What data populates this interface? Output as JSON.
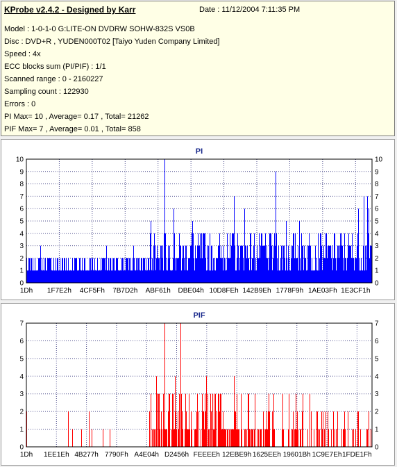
{
  "info": {
    "title": "KProbe v2.4.2 - Designed by Karr",
    "date": "Date :  11/12/2004 7:11:35 PM",
    "rows": [
      "Model : 1-0-1-0 G:LITE-ON DVDRW SOHW-832S  VS0B",
      "Disc : DVD+R , YUDEN000T02 [Taiyo Yuden Company Limited]",
      "Speed : 4x",
      "ECC blocks sum (PI/PIF) : 1/1",
      "Scanned range : 0 - 2160227",
      "Sampling count : 122930",
      "Errors : 0",
      "PI Max= 10 , Average= 0.17 , Total= 21262",
      "PIF Max= 7 , Average= 0.01 , Total= 858"
    ]
  },
  "chart_data": [
    {
      "type": "bar",
      "title": "PI",
      "color": "#0000ff",
      "ylim": [
        0,
        10
      ],
      "yticks": [
        "0",
        "1",
        "2",
        "3",
        "4",
        "5",
        "6",
        "7",
        "8",
        "9",
        "10"
      ],
      "xticks": [
        "1Dh",
        "1F7E2h",
        "4CF5Fh",
        "7B7D2h",
        "ABF61h",
        "DBE04h",
        "10D8FEh",
        "142B9Eh",
        "1778F9h",
        "1AE03Fh",
        "1E3CF1h"
      ],
      "grid": true,
      "segments": [
        {
          "x": [
            0.0,
            0.355
          ],
          "base": 1,
          "peak": 2,
          "spikes": [
            [
              0.04,
              3
            ],
            [
              0.23,
              3
            ],
            [
              0.31,
              3
            ]
          ]
        },
        {
          "x": [
            0.355,
            0.713
          ],
          "base": 2,
          "peak": 4,
          "spikes": [
            [
              0.36,
              5
            ],
            [
              0.37,
              4
            ],
            [
              0.4,
              10
            ],
            [
              0.425,
              6
            ],
            [
              0.48,
              5
            ],
            [
              0.51,
              4
            ],
            [
              0.58,
              4
            ],
            [
              0.6,
              7
            ],
            [
              0.63,
              6
            ],
            [
              0.69,
              4
            ]
          ]
        },
        {
          "x": [
            0.713,
            1.0
          ],
          "base": 2,
          "peak": 4,
          "spikes": [
            [
              0.72,
              9
            ],
            [
              0.75,
              5
            ],
            [
              0.79,
              5
            ],
            [
              0.85,
              4
            ],
            [
              0.96,
              6
            ],
            [
              0.975,
              7
            ],
            [
              0.985,
              7
            ],
            [
              0.99,
              6
            ]
          ]
        }
      ]
    },
    {
      "type": "bar",
      "title": "PIF",
      "color": "#ff0000",
      "ylim": [
        0,
        7
      ],
      "yticks": [
        "0",
        "1",
        "2",
        "3",
        "4",
        "5",
        "6",
        "7"
      ],
      "xticks": [
        "1Dh",
        "1EE1Eh",
        "4B277h",
        "7790Fh",
        "A4E04h",
        "D2456h",
        "FEEEEh",
        "12EBE9h",
        "1625EEh",
        "19601Bh",
        "1C9E7Eh",
        "1FDE1Fh"
      ],
      "grid": true,
      "segments": [
        {
          "x": [
            0.0,
            0.355
          ],
          "density": 0.03,
          "peak": 2,
          "spikes": [
            [
              0.0,
              2
            ],
            [
              0.12,
              2
            ],
            [
              0.18,
              2
            ],
            [
              0.22,
              1
            ]
          ]
        },
        {
          "x": [
            0.355,
            0.72
          ],
          "density": 0.7,
          "peak": 3,
          "spikes": [
            [
              0.36,
              3
            ],
            [
              0.375,
              4
            ],
            [
              0.4,
              7
            ],
            [
              0.43,
              4
            ],
            [
              0.445,
              7
            ],
            [
              0.47,
              3
            ],
            [
              0.52,
              4
            ],
            [
              0.56,
              3
            ],
            [
              0.6,
              4
            ],
            [
              0.66,
              3
            ],
            [
              0.7,
              3
            ]
          ]
        },
        {
          "x": [
            0.72,
            1.0
          ],
          "density": 0.35,
          "peak": 2,
          "spikes": [
            [
              0.74,
              3
            ],
            [
              0.76,
              3
            ],
            [
              0.78,
              3
            ],
            [
              0.8,
              3
            ],
            [
              0.82,
              3
            ],
            [
              0.84,
              2
            ],
            [
              0.9,
              2
            ],
            [
              0.96,
              2
            ],
            [
              0.99,
              2
            ]
          ]
        }
      ]
    }
  ]
}
